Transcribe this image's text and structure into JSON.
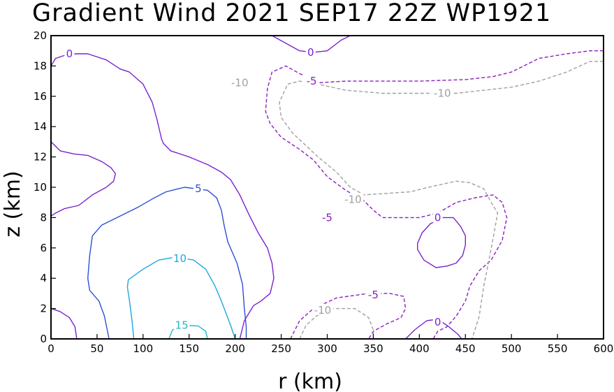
{
  "chart_data": {
    "type": "contour",
    "title": "Gradient Wind 2021 SEP17 22Z  WP1921",
    "xlabel": "r (km)",
    "ylabel": "z (km)",
    "xlim": [
      0,
      600
    ],
    "ylim": [
      0,
      20
    ],
    "xticks": [
      0,
      50,
      100,
      150,
      200,
      250,
      300,
      350,
      400,
      450,
      500,
      550,
      600
    ],
    "yticks": [
      0,
      2,
      4,
      6,
      8,
      10,
      12,
      14,
      16,
      18,
      20
    ],
    "colors": {
      "neg10": "#a0a0a0",
      "neg5": "#8a1fc0",
      "zero": "#7a22d0",
      "pos5": "#2c4fd8",
      "pos10": "#1ea8e0",
      "pos15": "#22b8c8"
    },
    "contours": [
      {
        "level": 0,
        "label": "0",
        "style": "solid",
        "color": "zero",
        "points": [
          [
            0,
            18
          ],
          [
            5,
            18.5
          ],
          [
            20,
            18.8
          ],
          [
            40,
            18.8
          ],
          [
            60,
            18.4
          ],
          [
            75,
            17.8
          ],
          [
            85,
            17.6
          ],
          [
            100,
            16.8
          ],
          [
            110,
            15.6
          ],
          [
            115,
            14.5
          ],
          [
            120,
            13.2
          ],
          [
            122,
            12.9
          ],
          [
            130,
            12.4
          ],
          [
            150,
            12
          ],
          [
            170,
            11.5
          ],
          [
            185,
            11
          ],
          [
            195,
            10.5
          ],
          [
            205,
            9.5
          ],
          [
            215,
            8.2
          ],
          [
            225,
            7
          ],
          [
            235,
            6
          ],
          [
            240,
            5
          ],
          [
            242,
            4
          ],
          [
            238,
            3
          ],
          [
            228,
            2.5
          ],
          [
            220,
            2.2
          ],
          [
            210,
            1.2
          ],
          [
            205,
            0
          ]
        ]
      },
      {
        "level": 0,
        "label": "0",
        "style": "solid",
        "color": "zero",
        "points": [
          [
            0,
            13
          ],
          [
            10,
            12.4
          ],
          [
            25,
            12.2
          ],
          [
            40,
            12.1
          ],
          [
            55,
            11.7
          ],
          [
            65,
            11.3
          ],
          [
            70,
            10.9
          ],
          [
            68,
            10.4
          ],
          [
            60,
            10
          ],
          [
            45,
            9.5
          ],
          [
            30,
            8.8
          ],
          [
            15,
            8.6
          ],
          [
            5,
            8.3
          ],
          [
            0,
            8.1
          ]
        ]
      },
      {
        "level": 0,
        "label": "0",
        "style": "solid",
        "color": "zero",
        "points": [
          [
            0,
            2
          ],
          [
            10,
            1.8
          ],
          [
            20,
            1.4
          ],
          [
            26,
            0.8
          ],
          [
            28,
            0
          ]
        ]
      },
      {
        "level": 0,
        "label": "0",
        "style": "solid",
        "color": "zero",
        "points": [
          [
            240,
            20
          ],
          [
            255,
            19.5
          ],
          [
            270,
            19
          ],
          [
            285,
            18.9
          ],
          [
            300,
            19
          ],
          [
            315,
            19.7
          ],
          [
            325,
            20
          ]
        ]
      },
      {
        "level": 0,
        "label": "0",
        "style": "solid",
        "color": "zero",
        "points": [
          [
            398,
            6.3
          ],
          [
            403,
            7
          ],
          [
            412,
            7.6
          ],
          [
            425,
            8
          ],
          [
            437,
            8
          ],
          [
            445,
            7.4
          ],
          [
            450,
            6.8
          ],
          [
            450,
            6.2
          ],
          [
            447,
            5.5
          ],
          [
            440,
            5
          ],
          [
            430,
            4.8
          ],
          [
            418,
            4.7
          ],
          [
            405,
            5.2
          ],
          [
            398,
            5.9
          ],
          [
            398,
            6.3
          ]
        ]
      },
      {
        "level": 0,
        "label": "0",
        "style": "solid",
        "color": "zero",
        "points": [
          [
            385,
            0
          ],
          [
            395,
            0.6
          ],
          [
            408,
            1.2
          ],
          [
            420,
            1.3
          ],
          [
            432,
            0.8
          ],
          [
            442,
            0.3
          ],
          [
            446,
            0
          ]
        ]
      },
      {
        "level": -5,
        "label": "-5",
        "style": "dashed",
        "color": "neg5",
        "points": [
          [
            600,
            19
          ],
          [
            585,
            19
          ],
          [
            560,
            18.8
          ],
          [
            530,
            18.5
          ],
          [
            500,
            17.6
          ],
          [
            480,
            17.3
          ],
          [
            450,
            17.1
          ],
          [
            400,
            17
          ],
          [
            350,
            17
          ],
          [
            320,
            17
          ],
          [
            292,
            16.9
          ],
          [
            270,
            17.5
          ],
          [
            255,
            18
          ],
          [
            240,
            17.6
          ],
          [
            235,
            16.5
          ],
          [
            233,
            15
          ],
          [
            238,
            14.2
          ],
          [
            250,
            13.3
          ],
          [
            270,
            12.5
          ],
          [
            285,
            11.8
          ],
          [
            300,
            10.7
          ],
          [
            320,
            9.8
          ],
          [
            340,
            9.1
          ],
          [
            350,
            8.5
          ],
          [
            360,
            8
          ],
          [
            400,
            8
          ],
          [
            420,
            8.3
          ],
          [
            440,
            9
          ],
          [
            460,
            9.3
          ],
          [
            480,
            9.5
          ],
          [
            490,
            9
          ],
          [
            495,
            8
          ],
          [
            490,
            6.5
          ],
          [
            478,
            5.2
          ],
          [
            465,
            4.5
          ],
          [
            455,
            3.5
          ],
          [
            450,
            2.5
          ],
          [
            440,
            1.5
          ],
          [
            430,
            0.8
          ],
          [
            420,
            0.5
          ],
          [
            415,
            0
          ]
        ]
      },
      {
        "level": -5,
        "label": "-5",
        "style": "dashed",
        "color": "neg5",
        "points": [
          [
            260,
            0
          ],
          [
            270,
            1.2
          ],
          [
            285,
            2
          ],
          [
            310,
            2.7
          ],
          [
            345,
            3
          ],
          [
            368,
            3
          ],
          [
            383,
            2.8
          ],
          [
            385,
            2
          ],
          [
            380,
            1.4
          ],
          [
            365,
            1
          ],
          [
            350,
            0.5
          ],
          [
            345,
            0
          ]
        ]
      },
      {
        "level": -10,
        "label": "-10",
        "style": "dashed",
        "color": "neg10",
        "points": [
          [
            600,
            18.3
          ],
          [
            585,
            18.3
          ],
          [
            560,
            17.6
          ],
          [
            530,
            17
          ],
          [
            500,
            16.6
          ],
          [
            440,
            16.2
          ],
          [
            360,
            16.2
          ],
          [
            320,
            16.4
          ],
          [
            290,
            16.8
          ],
          [
            270,
            17
          ],
          [
            257,
            16.8
          ],
          [
            248,
            15.6
          ],
          [
            250,
            14.6
          ],
          [
            262,
            13.6
          ],
          [
            290,
            12
          ],
          [
            310,
            11
          ],
          [
            325,
            10
          ],
          [
            340,
            9.5
          ],
          [
            390,
            9.7
          ],
          [
            410,
            10
          ],
          [
            440,
            10.4
          ],
          [
            455,
            10.3
          ],
          [
            470,
            9.9
          ],
          [
            478,
            9
          ],
          [
            485,
            8.3
          ],
          [
            480,
            6.6
          ],
          [
            475,
            5
          ],
          [
            470,
            3.5
          ],
          [
            465,
            1.5
          ],
          [
            460,
            0.5
          ],
          [
            457,
            0
          ]
        ]
      },
      {
        "level": -10,
        "label": "-10",
        "style": "dashed",
        "color": "neg10",
        "points": [
          [
            270,
            0
          ],
          [
            277,
            0.9
          ],
          [
            288,
            1.5
          ],
          [
            305,
            2
          ],
          [
            330,
            2
          ],
          [
            345,
            1.4
          ],
          [
            350,
            0.6
          ],
          [
            350,
            0
          ]
        ]
      },
      {
        "level": 5,
        "label": "5",
        "style": "solid",
        "color": "pos5",
        "points": [
          [
            63,
            0
          ],
          [
            58,
            1.5
          ],
          [
            52,
            2.5
          ],
          [
            42,
            3.2
          ],
          [
            40,
            4
          ],
          [
            42,
            5.5
          ],
          [
            45,
            6.8
          ],
          [
            55,
            7.5
          ],
          [
            75,
            8.1
          ],
          [
            95,
            8.7
          ],
          [
            112,
            9.3
          ],
          [
            125,
            9.7
          ],
          [
            145,
            10
          ],
          [
            170,
            9.8
          ],
          [
            180,
            9.3
          ],
          [
            185,
            8.5
          ],
          [
            188,
            7.5
          ],
          [
            192,
            6.4
          ],
          [
            202,
            5
          ],
          [
            208,
            3.6
          ],
          [
            210,
            2
          ],
          [
            212,
            0.8
          ],
          [
            212,
            0
          ]
        ]
      },
      {
        "level": 10,
        "label": "10",
        "style": "solid",
        "color": "pos10",
        "points": [
          [
            90,
            0
          ],
          [
            88,
            1.2
          ],
          [
            85,
            2.6
          ],
          [
            83,
            3.4
          ],
          [
            84,
            3.9
          ],
          [
            100,
            4.6
          ],
          [
            117,
            5.2
          ],
          [
            135,
            5.4
          ],
          [
            155,
            5.2
          ],
          [
            168,
            4.6
          ],
          [
            178,
            3.5
          ],
          [
            185,
            2.5
          ],
          [
            195,
            0.9
          ],
          [
            200,
            0
          ]
        ]
      },
      {
        "level": 15,
        "label": "15",
        "style": "solid",
        "color": "pos15",
        "points": [
          [
            128,
            0
          ],
          [
            132,
            0.6
          ],
          [
            145,
            0.9
          ],
          [
            160,
            0.85
          ],
          [
            168,
            0.5
          ],
          [
            170,
            0
          ]
        ]
      }
    ],
    "contour_labels": [
      {
        "text": "0",
        "x": 20,
        "y": 18.8,
        "color": "zero"
      },
      {
        "text": "0",
        "x": 282,
        "y": 18.9,
        "color": "zero"
      },
      {
        "text": "0",
        "x": 420,
        "y": 8,
        "color": "zero"
      },
      {
        "text": "0",
        "x": 420,
        "y": 1.1,
        "color": "zero"
      },
      {
        "text": "-5",
        "x": 283,
        "y": 17,
        "color": "neg5"
      },
      {
        "text": "-5",
        "x": 300,
        "y": 8,
        "color": "neg5"
      },
      {
        "text": "-5",
        "x": 350,
        "y": 2.9,
        "color": "neg5"
      },
      {
        "text": "-10",
        "x": 205,
        "y": 16.9,
        "color": "neg10"
      },
      {
        "text": "-10",
        "x": 425,
        "y": 16.2,
        "color": "neg10"
      },
      {
        "text": "-10",
        "x": 328,
        "y": 9.2,
        "color": "neg10"
      },
      {
        "text": "-10",
        "x": 295,
        "y": 1.9,
        "color": "neg10"
      },
      {
        "text": "5",
        "x": 160,
        "y": 9.9,
        "color": "pos5"
      },
      {
        "text": "10",
        "x": 140,
        "y": 5.3,
        "color": "pos10"
      },
      {
        "text": "15",
        "x": 142,
        "y": 0.9,
        "color": "pos15"
      }
    ]
  }
}
